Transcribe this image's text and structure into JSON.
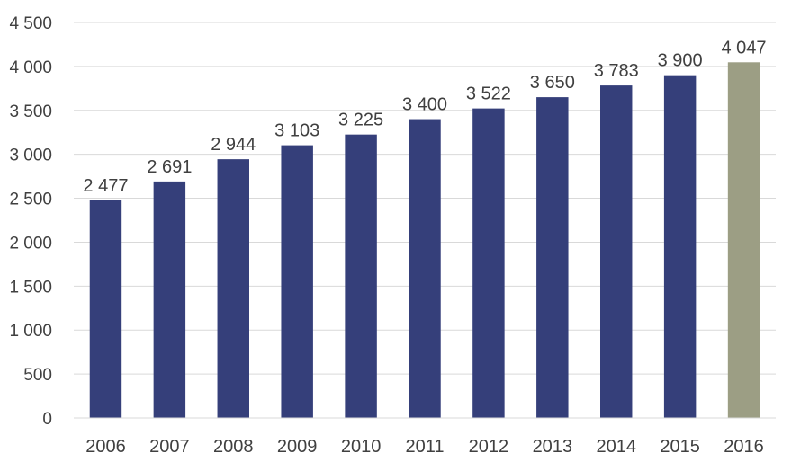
{
  "chart_data": {
    "type": "bar",
    "title": "",
    "xlabel": "",
    "ylabel": "",
    "categories": [
      "2006",
      "2007",
      "2008",
      "2009",
      "2010",
      "2011",
      "2012",
      "2013",
      "2014",
      "2015",
      "2016"
    ],
    "values": [
      2477,
      2691,
      2944,
      3103,
      3225,
      3400,
      3522,
      3650,
      3783,
      3900,
      4047
    ],
    "data_labels": [
      "2 477",
      "2 691",
      "2 944",
      "3 103",
      "3 225",
      "3 400",
      "3 522",
      "3 650",
      "3 783",
      "3 900",
      "4 047"
    ],
    "ylim": [
      0,
      4500
    ],
    "yticks": [
      0,
      500,
      1000,
      1500,
      2000,
      2500,
      3000,
      3500,
      4000,
      4500
    ],
    "ytick_labels": [
      "0",
      "500",
      "1 000",
      "1 500",
      "2 000",
      "2 500",
      "3 000",
      "3 500",
      "4 000",
      "4 500"
    ],
    "grid": true,
    "legend": "none",
    "colors": {
      "bar": "#353f7a",
      "highlight_bar": "#9c9e84",
      "grid": "#d9d9d9",
      "text": "#404040"
    },
    "highlight_category": "2016"
  }
}
